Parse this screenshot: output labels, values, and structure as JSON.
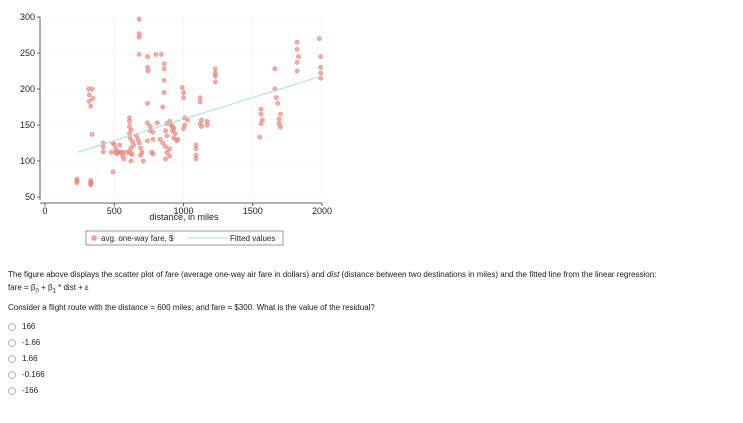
{
  "chart_data": {
    "type": "scatter",
    "xlabel": "distance, in miles",
    "ylabel": "",
    "xlim": [
      0,
      2000
    ],
    "ylim": [
      50,
      300
    ],
    "xticks": [
      0,
      500,
      1000,
      1500,
      2000
    ],
    "yticks": [
      50,
      100,
      150,
      200,
      250,
      300
    ],
    "grid": true,
    "legend_position": "bottom",
    "series": [
      {
        "name": "avg. one-way fare, $",
        "kind": "scatter",
        "color": "#f08a80",
        "points": [
          [
            230,
            75
          ],
          [
            230,
            72
          ],
          [
            230,
            70
          ],
          [
            330,
            73
          ],
          [
            330,
            70
          ],
          [
            330,
            68
          ],
          [
            330,
            67
          ],
          [
            315,
            200
          ],
          [
            340,
            200
          ],
          [
            320,
            192
          ],
          [
            345,
            187
          ],
          [
            320,
            183
          ],
          [
            330,
            176
          ],
          [
            340,
            137
          ],
          [
            420,
            125
          ],
          [
            420,
            120
          ],
          [
            420,
            113
          ],
          [
            490,
            125
          ],
          [
            500,
            123
          ],
          [
            510,
            117
          ],
          [
            530,
            113
          ],
          [
            480,
            112
          ],
          [
            520,
            110
          ],
          [
            560,
            112
          ],
          [
            560,
            107
          ],
          [
            490,
            85
          ],
          [
            510,
            112
          ],
          [
            540,
            122
          ],
          [
            550,
            112
          ],
          [
            590,
            112
          ],
          [
            610,
            113
          ],
          [
            620,
            110
          ],
          [
            630,
            109
          ],
          [
            620,
            100
          ],
          [
            570,
            103
          ],
          [
            610,
            160
          ],
          [
            610,
            155
          ],
          [
            610,
            148
          ],
          [
            620,
            143
          ],
          [
            610,
            138
          ],
          [
            615,
            132
          ],
          [
            630,
            127
          ],
          [
            640,
            122
          ],
          [
            620,
            118
          ],
          [
            660,
            135
          ],
          [
            670,
            130
          ],
          [
            680,
            125
          ],
          [
            690,
            118
          ],
          [
            700,
            112
          ],
          [
            690,
            108
          ],
          [
            710,
            100
          ],
          [
            680,
            297
          ],
          [
            680,
            277
          ],
          [
            680,
            272
          ],
          [
            680,
            248
          ],
          [
            740,
            245
          ],
          [
            740,
            230
          ],
          [
            745,
            225
          ],
          [
            740,
            180
          ],
          [
            740,
            153
          ],
          [
            760,
            148
          ],
          [
            760,
            142
          ],
          [
            780,
            140
          ],
          [
            780,
            130
          ],
          [
            740,
            128
          ],
          [
            770,
            112
          ],
          [
            780,
            110
          ],
          [
            800,
            248
          ],
          [
            840,
            248
          ],
          [
            860,
            235
          ],
          [
            860,
            228
          ],
          [
            860,
            212
          ],
          [
            860,
            195
          ],
          [
            850,
            175
          ],
          [
            810,
            153
          ],
          [
            880,
            152
          ],
          [
            870,
            142
          ],
          [
            880,
            135
          ],
          [
            830,
            130
          ],
          [
            850,
            125
          ],
          [
            870,
            120
          ],
          [
            900,
            117
          ],
          [
            880,
            112
          ],
          [
            900,
            107
          ],
          [
            870,
            103
          ],
          [
            900,
            155
          ],
          [
            910,
            150
          ],
          [
            920,
            148
          ],
          [
            930,
            145
          ],
          [
            920,
            142
          ],
          [
            940,
            138
          ],
          [
            930,
            132
          ],
          [
            960,
            130
          ],
          [
            950,
            128
          ],
          [
            990,
            202
          ],
          [
            1000,
            195
          ],
          [
            1000,
            188
          ],
          [
            1010,
            160
          ],
          [
            1030,
            157
          ],
          [
            1010,
            150
          ],
          [
            1000,
            145
          ],
          [
            1090,
            122
          ],
          [
            1090,
            117
          ],
          [
            1090,
            108
          ],
          [
            1090,
            103
          ],
          [
            1120,
            188
          ],
          [
            1120,
            182
          ],
          [
            1130,
            157
          ],
          [
            1120,
            152
          ],
          [
            1130,
            148
          ],
          [
            1170,
            155
          ],
          [
            1170,
            150
          ],
          [
            1230,
            228
          ],
          [
            1230,
            222
          ],
          [
            1230,
            218
          ],
          [
            1230,
            210
          ],
          [
            1560,
            172
          ],
          [
            1560,
            165
          ],
          [
            1570,
            157
          ],
          [
            1560,
            152
          ],
          [
            1550,
            133
          ],
          [
            1660,
            228
          ],
          [
            1660,
            200
          ],
          [
            1670,
            188
          ],
          [
            1680,
            180
          ],
          [
            1700,
            165
          ],
          [
            1690,
            158
          ],
          [
            1690,
            152
          ],
          [
            1700,
            147
          ],
          [
            1820,
            265
          ],
          [
            1820,
            255
          ],
          [
            1830,
            245
          ],
          [
            1820,
            237
          ],
          [
            1820,
            225
          ],
          [
            1980,
            270
          ],
          [
            1990,
            245
          ],
          [
            1990,
            230
          ],
          [
            1990,
            222
          ],
          [
            1990,
            215
          ]
        ]
      },
      {
        "name": "Fitted values",
        "kind": "line",
        "color": "#a8dde0",
        "points": [
          [
            230,
            112
          ],
          [
            2000,
            218
          ]
        ]
      }
    ]
  },
  "question": {
    "intro": "The figure above displays the scatter plot of ",
    "var1": "fare",
    "mid1": " (average one-way air fare in dollars) and ",
    "var2": "dist",
    "mid2": " (distance between two destinations in miles) and the fitted line from the linear regression:",
    "formula_a": "fare = β",
    "sub0": "0",
    "formula_b": " + β",
    "sub1": "1",
    "formula_c": " * dist  + ε",
    "ask": "Consider a flight route with the distance = 600 miles, and fare = $300. What is the value of the residual?",
    "options": [
      "166",
      "-1.66",
      "1.66",
      "-0.166",
      "-166"
    ]
  }
}
